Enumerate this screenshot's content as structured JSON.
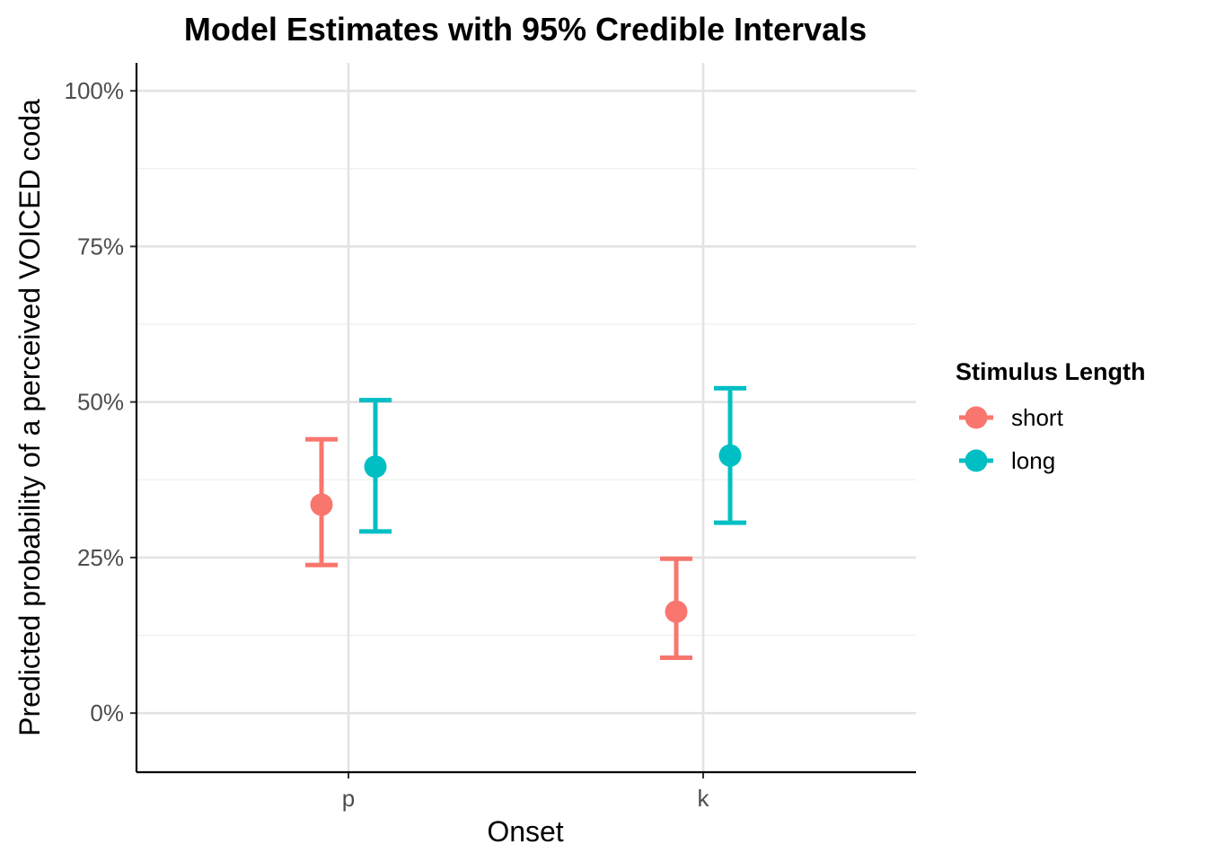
{
  "chart_data": {
    "type": "scatter",
    "title": "Model Estimates with 95% Credible Intervals",
    "xlabel": "Onset",
    "ylabel": "Predicted probability of a perceived VOICED coda",
    "categories": [
      "p",
      "k"
    ],
    "ylim": [
      -0.095,
      1.045
    ],
    "yticks": [
      0,
      0.25,
      0.5,
      0.75,
      1.0
    ],
    "ytick_labels": [
      "0%",
      "25%",
      "50%",
      "75%",
      "100%"
    ],
    "grid": true,
    "legend": {
      "title": "Stimulus Length",
      "position": "right"
    },
    "series": [
      {
        "name": "short",
        "color": "#F8766D",
        "estimates": [
          0.335,
          0.163
        ],
        "lower": [
          0.238,
          0.089
        ],
        "upper": [
          0.44,
          0.248
        ]
      },
      {
        "name": "long",
        "color": "#00BFC4",
        "estimates": [
          0.396,
          0.414
        ],
        "lower": [
          0.292,
          0.306
        ],
        "upper": [
          0.503,
          0.522
        ]
      }
    ]
  }
}
